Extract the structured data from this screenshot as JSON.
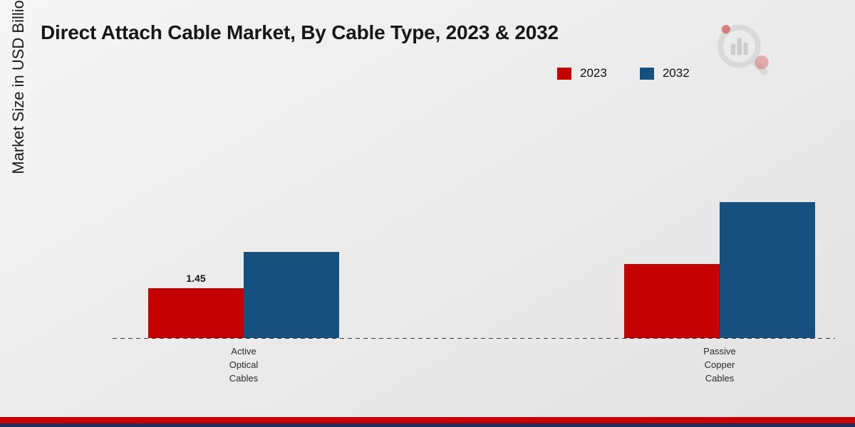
{
  "page": {
    "title": "Direct Attach Cable Market, By Cable Type, 2023 & 2032",
    "ylabel": "Market Size in USD Billion"
  },
  "legend": {
    "items": [
      {
        "label": "2023",
        "color": "#c40000"
      },
      {
        "label": "2032",
        "color": "#16507f"
      }
    ]
  },
  "chart_data": {
    "type": "bar",
    "title": "Direct Attach Cable Market, By Cable Type, 2023 & 2032",
    "xlabel": "",
    "ylabel": "Market Size in USD Billion",
    "categories": [
      "Active Optical Cables",
      "Passive Copper Cables"
    ],
    "category_label_lines": [
      [
        "Active",
        "Optical",
        "Cables"
      ],
      [
        "Passive",
        "Copper",
        "Cables"
      ]
    ],
    "series": [
      {
        "name": "2023",
        "color": "#c40000",
        "values": [
          1.45,
          2.15
        ]
      },
      {
        "name": "2032",
        "color": "#16507f",
        "values": [
          2.5,
          3.95
        ]
      }
    ],
    "value_labels": [
      {
        "series": "2023",
        "category": "Active Optical Cables",
        "text": "1.45"
      }
    ],
    "ylim": [
      0,
      4.5
    ],
    "grid": false,
    "legend_position": "top-right",
    "baseline_style": "dashed"
  },
  "theme": {
    "footer_stripe_red": "#c40000",
    "footer_stripe_navy": "#1b2c5e"
  }
}
